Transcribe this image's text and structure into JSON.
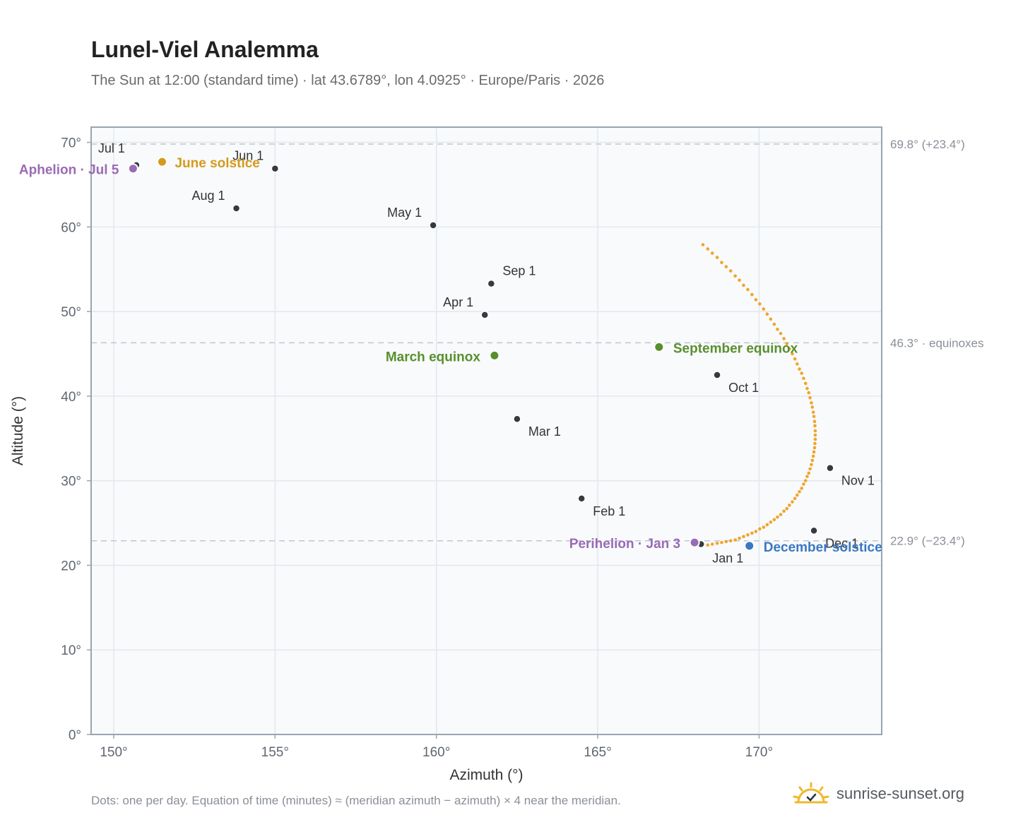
{
  "title": "Lunel-Viel Analemma",
  "subtitle": "The Sun at 12:00 (standard time) · lat 43.6789°, lon 4.0925° · Europe/Paris · 2026",
  "footnote": "Dots: one per day. Equation of time (minutes) ≈ (meridian azimuth − azimuth) × 4 near the meridian.",
  "brand": {
    "name": "sunrise-sunset.org",
    "icon": "sun-logo-icon"
  },
  "colors": {
    "curve": "#f0a52a",
    "month_dot": "#343a40",
    "solstice_june": "#d49a1a",
    "solstice_december": "#3a78c2",
    "equinox": "#5a8f2e",
    "apsis": "#9a6bb5",
    "plot_bg": "#f8fafc",
    "grid": "#e3e8ee",
    "frame": "#9aa4b0",
    "ref_line": "#c0c7d0"
  },
  "chart_data": {
    "type": "scatter",
    "xlabel": "Azimuth (°)",
    "ylabel": "Altitude (°)",
    "xlim": [
      149.3,
      173.8
    ],
    "ylim": [
      0,
      71.8
    ],
    "x_ticks": [
      150,
      155,
      160,
      165,
      170
    ],
    "x_tick_labels": [
      "150°",
      "155°",
      "160°",
      "165°",
      "170°"
    ],
    "y_ticks": [
      0,
      10,
      20,
      30,
      40,
      50,
      60,
      70
    ],
    "y_tick_labels": [
      "0°",
      "10°",
      "20°",
      "30°",
      "40°",
      "50°",
      "60°",
      "70°"
    ],
    "grid": true,
    "reference_lines": [
      {
        "y": 69.8,
        "label": "69.8° (+23.4°)"
      },
      {
        "y": 46.3,
        "label": "46.3° · equinoxes"
      },
      {
        "y": 22.9,
        "label": "22.9° (−23.4°)"
      }
    ],
    "series": [
      {
        "points_per": "day",
        "x": [
          168.26,
          168.41,
          168.55,
          168.7,
          168.84,
          168.98,
          169.12,
          169.26,
          169.39,
          169.52,
          169.65,
          169.78,
          169.9,
          170.02,
          170.14,
          170.25,
          170.36,
          170.47,
          170.57,
          170.67,
          170.77,
          170.86,
          170.94,
          171.03,
          171.11,
          171.18,
          171.25,
          171.32,
          171.38,
          171.44,
          171.49,
          171.54,
          171.58,
          171.62,
          171.65,
          171.68,
          171.7,
          171.72,
          171.73,
          171.74,
          171.74,
          171.74,
          171.73,
          171.72,
          171.7,
          171.68,
          171.65,
          171.62,
          171.58,
          171.54,
          171.49,
          171.44,
          171.38,
          171.32,
          171.25,
          171.18,
          171.11,
          171.03,
          170.94,
          170.86,
          170.77,
          170.67,
          170.57,
          170.47,
          170.36,
          170.25,
          170.14,
          170.02,
          169.9,
          169.78,
          169.65,
          169.52,
          169.39,
          169.26,
          169.12,
          168.98,
          168.84,
          168.7,
          168.55,
          168.41,
          168.26
        ],
        "y": [
          22.4,
          22.4,
          22.5,
          22.6,
          22.7,
          22.8,
          22.9,
          23.0,
          23.2,
          23.4,
          23.6,
          23.8,
          24.0,
          24.3,
          24.5,
          24.8,
          25.1,
          25.4,
          25.7,
          26.0,
          26.4,
          26.7,
          27.1,
          27.5,
          27.9,
          28.3,
          28.7,
          29.1,
          29.6,
          30.0,
          30.5,
          30.9,
          31.4,
          31.9,
          32.4,
          32.9,
          33.4,
          33.9,
          34.4,
          34.9,
          35.4,
          35.9,
          36.5,
          37.0,
          37.6,
          38.1,
          38.7,
          39.2,
          39.8,
          40.4,
          40.9,
          41.5,
          42.1,
          42.7,
          43.2,
          43.8,
          44.4,
          45.0,
          45.6,
          46.2,
          46.8,
          47.4,
          47.9,
          48.5,
          49.1,
          49.7,
          50.3,
          50.9,
          51.4,
          52.0,
          52.6,
          53.1,
          53.7,
          54.2,
          54.8,
          55.3,
          55.8,
          56.4,
          56.9,
          57.4,
          57.9
        ]
      }
    ],
    "month_markers": [
      {
        "label": "Jan 1",
        "x": 168.2,
        "y": 22.5
      },
      {
        "label": "Feb 1",
        "x": 164.5,
        "y": 27.9
      },
      {
        "label": "Mar 1",
        "x": 162.5,
        "y": 37.3
      },
      {
        "label": "Apr 1",
        "x": 161.5,
        "y": 49.6
      },
      {
        "label": "May 1",
        "x": 159.9,
        "y": 60.2
      },
      {
        "label": "Jun 1",
        "x": 155.0,
        "y": 66.9
      },
      {
        "label": "Jul 1",
        "x": 150.7,
        "y": 67.3
      },
      {
        "label": "Aug 1",
        "x": 153.8,
        "y": 62.2
      },
      {
        "label": "Sep 1",
        "x": 161.7,
        "y": 53.3
      },
      {
        "label": "Oct 1",
        "x": 168.7,
        "y": 42.5
      },
      {
        "label": "Nov 1",
        "x": 172.2,
        "y": 31.5
      },
      {
        "label": "Dec 1",
        "x": 171.7,
        "y": 24.1
      }
    ],
    "events": [
      {
        "label": "June solstice",
        "x": 151.5,
        "y": 67.7,
        "kind": "solstice_june"
      },
      {
        "label": "December solstice",
        "x": 169.7,
        "y": 22.3,
        "kind": "solstice_december"
      },
      {
        "label": "March equinox",
        "x": 161.8,
        "y": 44.8,
        "kind": "equinox"
      },
      {
        "label": "September equinox",
        "x": 166.9,
        "y": 45.8,
        "kind": "equinox"
      },
      {
        "label": "Aphelion · Jul 5",
        "x": 150.6,
        "y": 66.9,
        "kind": "apsis"
      },
      {
        "label": "Perihelion · Jan 3",
        "x": 168.0,
        "y": 22.7,
        "kind": "apsis"
      }
    ]
  }
}
